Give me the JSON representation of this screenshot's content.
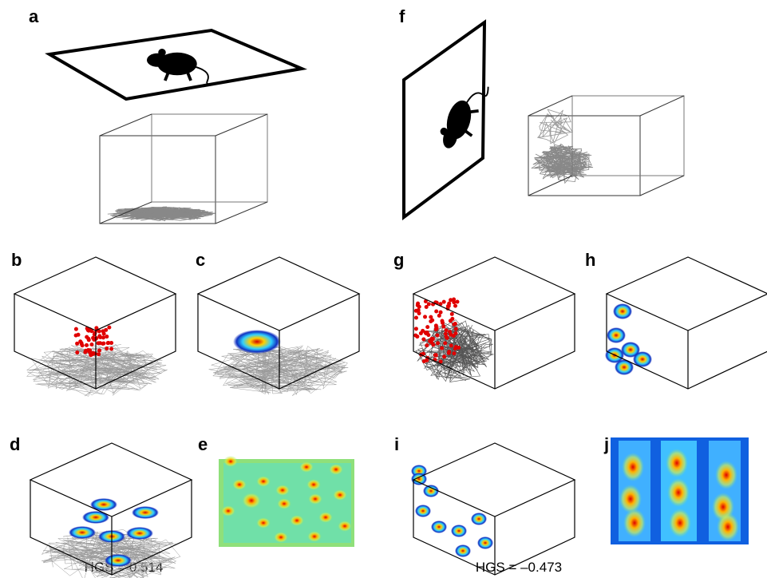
{
  "panel_labels": [
    "a",
    "b",
    "c",
    "d",
    "e",
    "f",
    "g",
    "h",
    "i",
    "j"
  ],
  "scores": [
    "HGS = 0.514",
    "HGS = –0.473"
  ]
}
